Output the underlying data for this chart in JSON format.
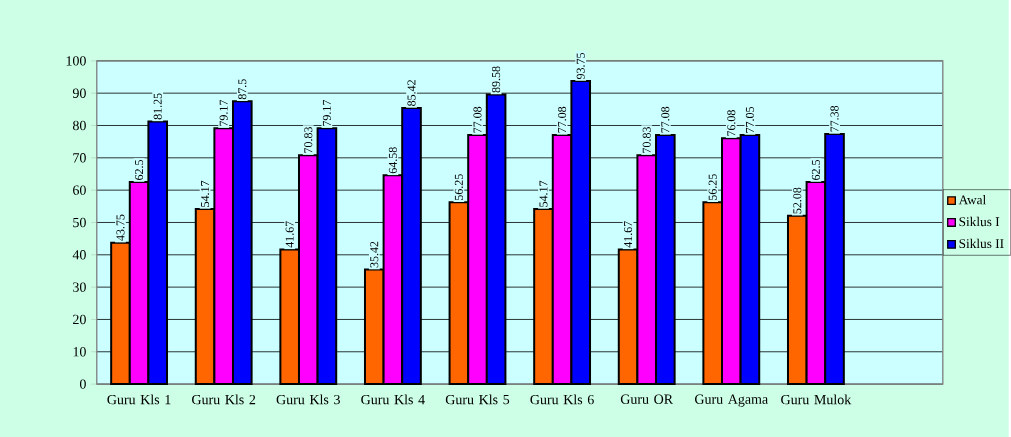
{
  "chart_data": {
    "type": "bar",
    "categories": [
      "Guru Kls 1",
      "Guru Kls 2",
      "Guru Kls 3",
      "Guru Kls 4",
      "Guru Kls 5",
      "Guru Kls 6",
      "Guru OR",
      "Guru Agama",
      "Guru Mulok"
    ],
    "series": [
      {
        "name": "Awal",
        "color": "#ff6600",
        "values": [
          43.75,
          54.17,
          41.67,
          35.42,
          56.25,
          54.17,
          41.67,
          56.25,
          52.08
        ]
      },
      {
        "name": "Siklus I",
        "color": "#ff00ff",
        "values": [
          62.5,
          79.17,
          70.83,
          64.58,
          77.08,
          77.08,
          70.83,
          76.08,
          62.5
        ]
      },
      {
        "name": "Siklus II",
        "color": "#0000ff",
        "values": [
          81.25,
          87.5,
          79.17,
          85.42,
          89.58,
          93.75,
          77.08,
          77.05,
          77.38
        ]
      }
    ],
    "ylim": [
      0,
      100
    ],
    "yticks": [
      0,
      10,
      20,
      30,
      40,
      50,
      60,
      70,
      80,
      90,
      100
    ],
    "grid": "y",
    "legend": "right",
    "data_labels": true
  }
}
